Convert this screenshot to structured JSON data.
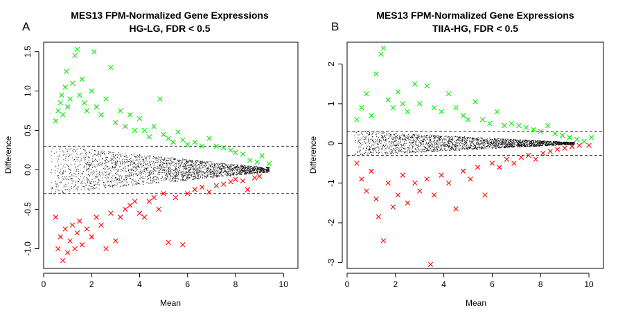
{
  "figure": {
    "panels": [
      {
        "letter": "A",
        "title_line1": "MES13 FPM-Normalized Gene Expressions",
        "title_line2": "HG-LG, FDR < 0.5"
      },
      {
        "letter": "B",
        "title_line1": "MES13 FPM-Normalized Gene Expressions",
        "title_line2": "TIIA-HG, FDR < 0.5"
      }
    ]
  },
  "colors": {
    "up": "#00ee00",
    "down": "#ff0000",
    "nonsignificant": "#000000",
    "threshold_line": "#333333"
  },
  "chart_data": [
    {
      "type": "scatter",
      "title": "MES13 FPM-Normalized Gene Expressions\nHG-LG, FDR < 0.5",
      "xlabel": "Mean",
      "ylabel": "Difference",
      "xlim": [
        0,
        10.6
      ],
      "ylim": [
        -1.25,
        1.62
      ],
      "xticks": [
        0,
        2,
        4,
        6,
        8,
        10
      ],
      "yticks": [
        -1.0,
        -0.5,
        0.0,
        0.5,
        1.0,
        1.5
      ],
      "ytick_labels": [
        "-1.0",
        "-0.5",
        "0.0",
        "0.5",
        "1.0",
        "1.5"
      ],
      "thresholds": [
        0.3,
        -0.3
      ],
      "grid": false,
      "series": [
        {
          "marker": "x",
          "color": "#00ee00",
          "points": [
            [
              0.5,
              0.62
            ],
            [
              0.6,
              0.75
            ],
            [
              0.7,
              0.85
            ],
            [
              0.75,
              0.95
            ],
            [
              0.8,
              0.7
            ],
            [
              0.9,
              1.05
            ],
            [
              0.95,
              1.25
            ],
            [
              1.0,
              0.8
            ],
            [
              1.1,
              0.9
            ],
            [
              1.2,
              1.1
            ],
            [
              1.3,
              1.45
            ],
            [
              1.4,
              1.53
            ],
            [
              1.5,
              0.95
            ],
            [
              1.6,
              1.15
            ],
            [
              1.7,
              0.85
            ],
            [
              1.8,
              0.75
            ],
            [
              2.0,
              1.0
            ],
            [
              2.1,
              1.5
            ],
            [
              2.2,
              0.8
            ],
            [
              2.4,
              0.7
            ],
            [
              2.6,
              0.9
            ],
            [
              2.8,
              1.3
            ],
            [
              3.0,
              0.6
            ],
            [
              3.2,
              0.75
            ],
            [
              3.4,
              0.55
            ],
            [
              3.6,
              0.7
            ],
            [
              3.8,
              0.5
            ],
            [
              4.0,
              0.65
            ],
            [
              4.2,
              0.5
            ],
            [
              4.4,
              0.42
            ],
            [
              4.6,
              0.55
            ],
            [
              4.85,
              0.9
            ],
            [
              5.0,
              0.45
            ],
            [
              5.2,
              0.4
            ],
            [
              5.4,
              0.35
            ],
            [
              5.6,
              0.48
            ],
            [
              5.8,
              0.38
            ],
            [
              6.0,
              0.32
            ],
            [
              6.3,
              0.35
            ],
            [
              6.6,
              0.3
            ],
            [
              6.9,
              0.4
            ],
            [
              7.2,
              0.3
            ],
            [
              7.5,
              0.28
            ],
            [
              7.8,
              0.25
            ],
            [
              8.0,
              0.22
            ],
            [
              8.3,
              0.2
            ],
            [
              8.6,
              0.12
            ],
            [
              8.9,
              0.1
            ],
            [
              9.1,
              0.18
            ],
            [
              9.4,
              0.08
            ]
          ]
        },
        {
          "marker": "x",
          "color": "#ff0000",
          "points": [
            [
              0.5,
              -0.6
            ],
            [
              0.6,
              -1.0
            ],
            [
              0.7,
              -0.85
            ],
            [
              0.8,
              -1.15
            ],
            [
              0.9,
              -0.75
            ],
            [
              1.0,
              -1.05
            ],
            [
              1.1,
              -0.9
            ],
            [
              1.2,
              -0.7
            ],
            [
              1.3,
              -1.0
            ],
            [
              1.4,
              -0.8
            ],
            [
              1.5,
              -0.65
            ],
            [
              1.6,
              -0.95
            ],
            [
              1.8,
              -0.75
            ],
            [
              2.0,
              -0.85
            ],
            [
              2.2,
              -0.6
            ],
            [
              2.4,
              -0.7
            ],
            [
              2.6,
              -1.0
            ],
            [
              2.8,
              -0.55
            ],
            [
              3.0,
              -0.9
            ],
            [
              3.2,
              -0.6
            ],
            [
              3.4,
              -0.5
            ],
            [
              3.6,
              -0.45
            ],
            [
              3.8,
              -0.4
            ],
            [
              4.0,
              -0.55
            ],
            [
              4.2,
              -0.6
            ],
            [
              4.4,
              -0.4
            ],
            [
              4.6,
              -0.35
            ],
            [
              4.8,
              -0.5
            ],
            [
              5.0,
              -0.3
            ],
            [
              5.2,
              -0.92
            ],
            [
              5.5,
              -0.35
            ],
            [
              5.8,
              -0.95
            ],
            [
              6.0,
              -0.3
            ],
            [
              6.3,
              -0.25
            ],
            [
              6.6,
              -0.22
            ],
            [
              6.9,
              -0.28
            ],
            [
              7.2,
              -0.2
            ],
            [
              7.5,
              -0.18
            ],
            [
              7.8,
              -0.15
            ],
            [
              8.0,
              -0.12
            ],
            [
              8.3,
              -0.14
            ],
            [
              8.5,
              -0.25
            ],
            [
              8.8,
              -0.1
            ],
            [
              9.0,
              -0.08
            ]
          ]
        }
      ]
    },
    {
      "type": "scatter",
      "title": "MES13 FPM-Normalized Gene Expressions\nTIIA-HG, FDR < 0.5",
      "xlabel": "Mean",
      "ylabel": "Difference",
      "xlim": [
        0,
        10.6
      ],
      "ylim": [
        -3.15,
        2.55
      ],
      "xticks": [
        0,
        2,
        4,
        6,
        8,
        10
      ],
      "yticks": [
        -3,
        -2,
        -1,
        0,
        1,
        2
      ],
      "ytick_labels": [
        "-3",
        "-2",
        "-1",
        "0",
        "1",
        "2"
      ],
      "thresholds": [
        0.3,
        -0.3
      ],
      "grid": false,
      "series": [
        {
          "marker": "x",
          "color": "#00ee00",
          "points": [
            [
              0.4,
              0.6
            ],
            [
              0.6,
              0.9
            ],
            [
              0.8,
              1.25
            ],
            [
              1.0,
              0.7
            ],
            [
              1.2,
              1.75
            ],
            [
              1.4,
              2.25
            ],
            [
              1.5,
              2.4
            ],
            [
              1.7,
              1.1
            ],
            [
              1.9,
              0.9
            ],
            [
              2.1,
              1.3
            ],
            [
              2.3,
              1.0
            ],
            [
              2.5,
              0.8
            ],
            [
              2.8,
              1.5
            ],
            [
              3.0,
              1.0
            ],
            [
              3.3,
              1.45
            ],
            [
              3.6,
              0.9
            ],
            [
              3.9,
              0.8
            ],
            [
              4.2,
              1.25
            ],
            [
              4.5,
              0.9
            ],
            [
              4.8,
              0.7
            ],
            [
              5.0,
              0.6
            ],
            [
              5.3,
              1.05
            ],
            [
              5.6,
              0.6
            ],
            [
              5.9,
              0.5
            ],
            [
              6.2,
              0.8
            ],
            [
              6.5,
              0.45
            ],
            [
              6.8,
              0.5
            ],
            [
              7.1,
              0.45
            ],
            [
              7.4,
              0.4
            ],
            [
              7.7,
              0.35
            ],
            [
              8.0,
              0.3
            ],
            [
              8.3,
              0.45
            ],
            [
              8.6,
              0.25
            ],
            [
              8.9,
              0.2
            ],
            [
              9.2,
              0.15
            ],
            [
              9.5,
              0.1
            ],
            [
              9.8,
              0.05
            ],
            [
              10.1,
              0.15
            ]
          ]
        },
        {
          "marker": "x",
          "color": "#ff0000",
          "points": [
            [
              0.4,
              -0.5
            ],
            [
              0.6,
              -0.9
            ],
            [
              0.8,
              -1.2
            ],
            [
              1.0,
              -0.7
            ],
            [
              1.2,
              -1.4
            ],
            [
              1.3,
              -1.85
            ],
            [
              1.5,
              -2.45
            ],
            [
              1.7,
              -1.0
            ],
            [
              1.9,
              -1.6
            ],
            [
              2.1,
              -1.3
            ],
            [
              2.3,
              -0.8
            ],
            [
              2.5,
              -1.5
            ],
            [
              2.8,
              -1.0
            ],
            [
              3.0,
              -1.2
            ],
            [
              3.3,
              -0.9
            ],
            [
              3.45,
              -3.05
            ],
            [
              3.6,
              -1.3
            ],
            [
              3.9,
              -0.8
            ],
            [
              4.2,
              -1.0
            ],
            [
              4.5,
              -1.65
            ],
            [
              4.8,
              -0.7
            ],
            [
              5.1,
              -0.9
            ],
            [
              5.4,
              -0.6
            ],
            [
              5.7,
              -1.3
            ],
            [
              6.0,
              -0.5
            ],
            [
              6.3,
              -0.6
            ],
            [
              6.6,
              -0.4
            ],
            [
              6.9,
              -0.5
            ],
            [
              7.2,
              -0.35
            ],
            [
              7.5,
              -0.3
            ],
            [
              7.8,
              -0.4
            ],
            [
              8.1,
              -0.25
            ],
            [
              8.4,
              -0.2
            ],
            [
              8.7,
              -0.15
            ],
            [
              9.0,
              -0.12
            ],
            [
              9.3,
              -0.08
            ],
            [
              9.6,
              -0.05
            ],
            [
              10.0,
              -0.05
            ]
          ]
        }
      ]
    }
  ]
}
